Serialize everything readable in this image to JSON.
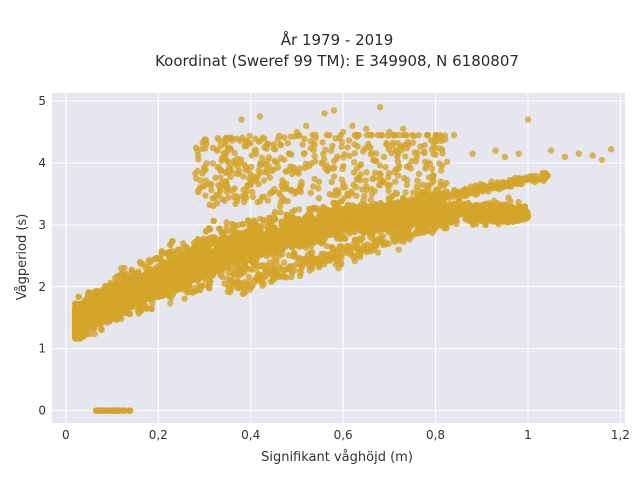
{
  "chart_data": {
    "type": "scatter",
    "title": "År 1979 - 2019",
    "subtitle": "Koordinat (Sweref 99 TM): E 349908, N 6180807",
    "xlabel": "Signifikant våghöjd (m)",
    "ylabel": "Vågperiod (s)",
    "xlim": [
      -0.03,
      1.21
    ],
    "ylim": [
      -0.2,
      5.13
    ],
    "x_ticks": [
      0,
      0.2,
      0.4,
      0.6,
      0.8,
      1,
      1.2
    ],
    "x_tick_labels": [
      "0",
      "0,2",
      "0,4",
      "0,6",
      "0,8",
      "1",
      "1,2"
    ],
    "y_ticks": [
      0,
      1,
      2,
      3,
      4,
      5
    ],
    "y_tick_labels": [
      "0",
      "1",
      "2",
      "3",
      "4",
      "5"
    ],
    "grid": true,
    "marker_color": "#D4A52A",
    "plot_background": "#E6E6EF",
    "series": [
      {
        "zero_period_cluster": {
          "x_range": [
            0.06,
            0.14
          ],
          "y": 0
        },
        "outliers": [
          [
            0.38,
            4.7
          ],
          [
            0.42,
            4.75
          ],
          [
            0.5,
            4.5
          ],
          [
            0.52,
            4.6
          ],
          [
            0.56,
            4.8
          ],
          [
            0.58,
            4.85
          ],
          [
            0.62,
            4.6
          ],
          [
            0.65,
            4.55
          ],
          [
            0.68,
            4.9
          ],
          [
            0.7,
            4.5
          ],
          [
            0.73,
            4.55
          ],
          [
            0.75,
            4.45
          ],
          [
            0.8,
            4.42
          ],
          [
            0.84,
            4.45
          ],
          [
            0.88,
            4.15
          ],
          [
            0.93,
            4.2
          ],
          [
            0.95,
            4.1
          ],
          [
            1.0,
            4.7
          ],
          [
            0.98,
            4.15
          ],
          [
            1.05,
            4.2
          ],
          [
            1.08,
            4.1
          ],
          [
            1.11,
            4.15
          ],
          [
            1.14,
            4.12
          ],
          [
            1.18,
            4.22
          ],
          [
            1.16,
            4.05
          ],
          [
            0.3,
            3.9
          ],
          [
            0.35,
            4.2
          ],
          [
            0.45,
            4.3
          ],
          [
            0.6,
            4.5
          ],
          [
            0.53,
            4.35
          ],
          [
            0.78,
            2.9
          ],
          [
            0.72,
            2.6
          ],
          [
            0.65,
            2.6
          ],
          [
            0.55,
            2.4
          ],
          [
            0.59,
            2.3
          ],
          [
            0.2,
            2.2
          ],
          [
            0.12,
            2.3
          ],
          [
            0.16,
            2.4
          ],
          [
            0.05,
            1.7
          ],
          [
            0.04,
            1.5
          ]
        ]
      }
    ]
  }
}
